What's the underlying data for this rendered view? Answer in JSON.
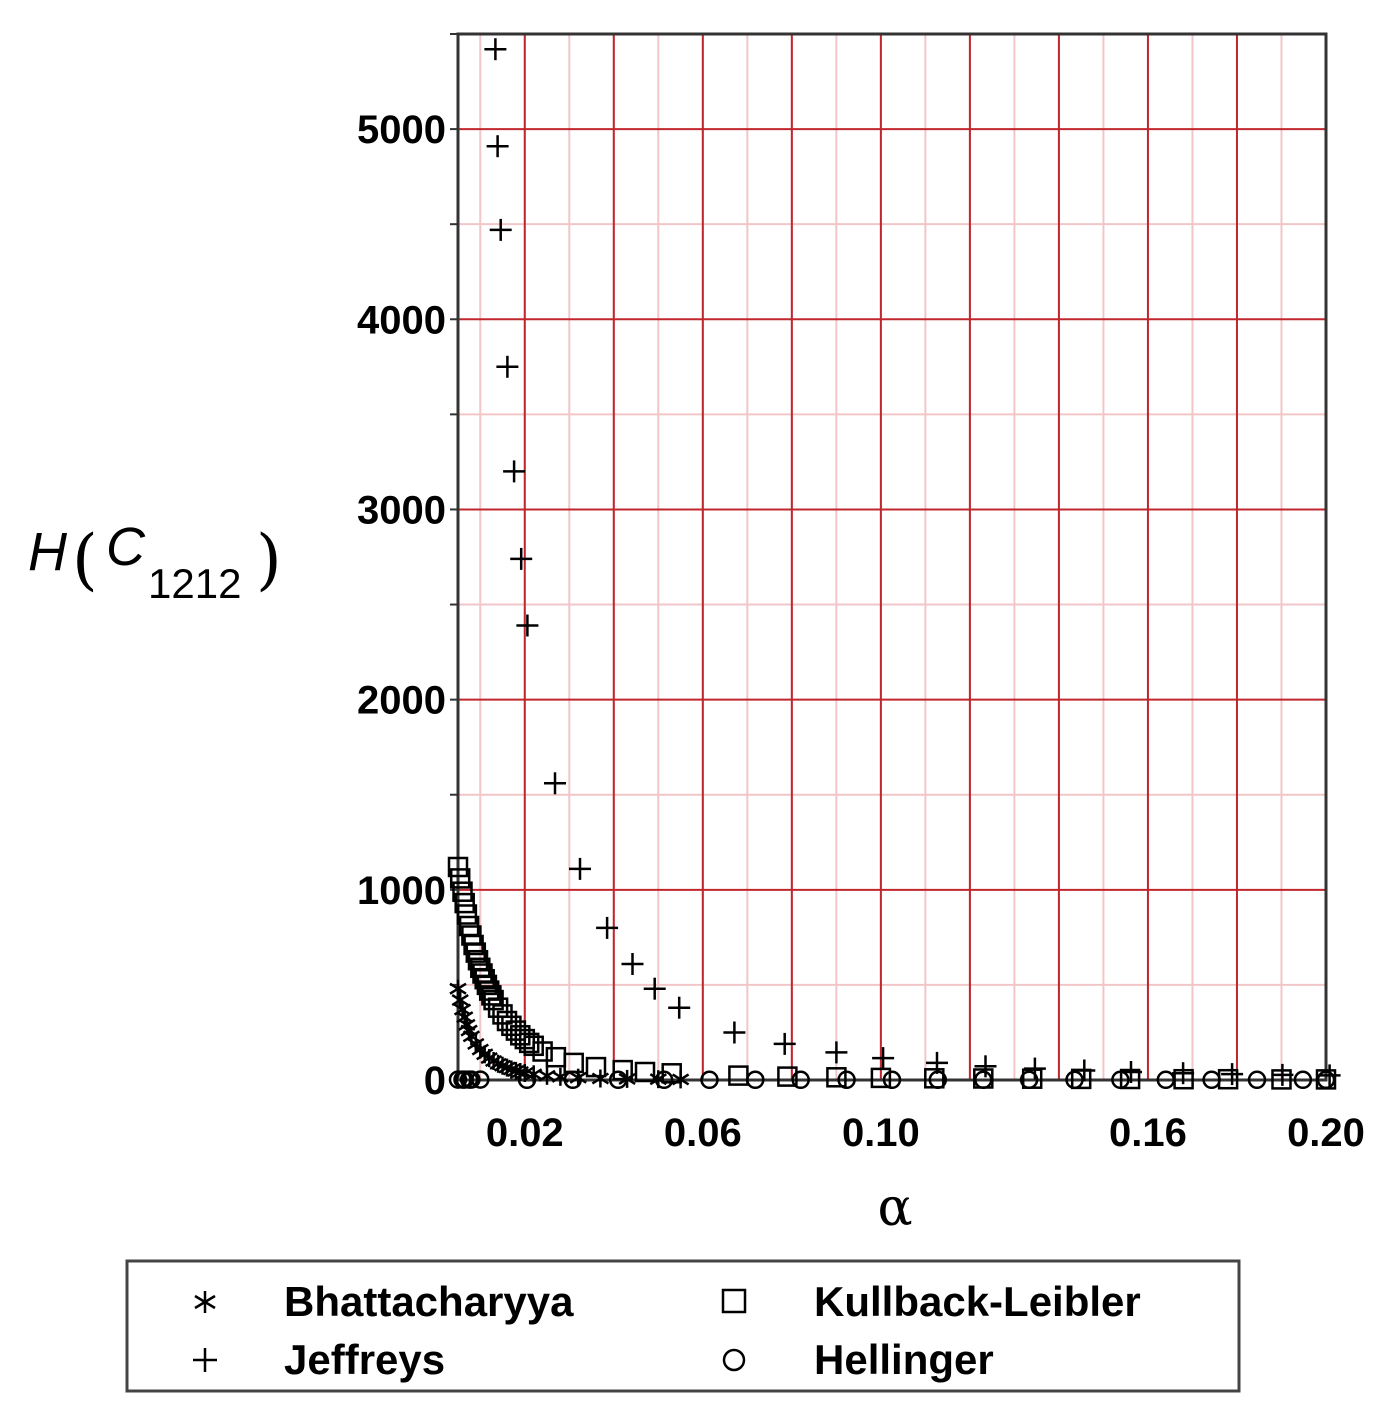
{
  "chart_data": {
    "type": "scatter",
    "title": "",
    "xlabel": "α",
    "ylabel": {
      "main": "H",
      "symbol": "C",
      "subscript": "1212"
    },
    "xlim": [
      0.005,
      0.2
    ],
    "ylim": [
      0,
      5500
    ],
    "x_ticks": [
      {
        "value": 0.02,
        "label": "0.02"
      },
      {
        "value": 0.06,
        "label": "0.06"
      },
      {
        "value": 0.1,
        "label": "0.10"
      },
      {
        "value": 0.16,
        "label": "0.16"
      },
      {
        "value": 0.2,
        "label": "0.20"
      }
    ],
    "y_ticks": [
      {
        "value": 0,
        "label": "0"
      },
      {
        "value": 1000,
        "label": "1000"
      },
      {
        "value": 2000,
        "label": "2000"
      },
      {
        "value": 3000,
        "label": "3000"
      },
      {
        "value": 4000,
        "label": "4000"
      },
      {
        "value": 5000,
        "label": "5000"
      }
    ],
    "grid": true,
    "grid_major_color": "#c0272d",
    "grid_minor_color": "#f2c6c8",
    "legend_position": "bottom",
    "series": [
      {
        "name": "Bhattacharyya",
        "marker": "star",
        "x": [
          0.005,
          0.0055,
          0.006,
          0.0065,
          0.007,
          0.0075,
          0.008,
          0.009,
          0.01,
          0.011,
          0.012,
          0.013,
          0.014,
          0.015,
          0.016,
          0.017,
          0.018,
          0.019,
          0.02,
          0.022,
          0.025,
          0.028,
          0.032,
          0.037,
          0.043,
          0.05,
          0.055
        ],
        "y": [
          480,
          420,
          370,
          330,
          290,
          260,
          230,
          190,
          160,
          135,
          115,
          100,
          85,
          75,
          65,
          55,
          48,
          42,
          37,
          30,
          22,
          17,
          12,
          8,
          6,
          4,
          3
        ]
      },
      {
        "name": "Kullback-Leibler",
        "marker": "square",
        "x": [
          0.005,
          0.0055,
          0.006,
          0.0065,
          0.007,
          0.0075,
          0.008,
          0.0085,
          0.009,
          0.0095,
          0.01,
          0.0105,
          0.011,
          0.0115,
          0.012,
          0.0125,
          0.013,
          0.014,
          0.015,
          0.016,
          0.017,
          0.018,
          0.019,
          0.02,
          0.021,
          0.022,
          0.024,
          0.027,
          0.031,
          0.036,
          0.042,
          0.047,
          0.053,
          0.068,
          0.079,
          0.09,
          0.1,
          0.112,
          0.123,
          0.134,
          0.145,
          0.156,
          0.168,
          0.178,
          0.19,
          0.2
        ],
        "y": [
          1120,
          1060,
          990,
          930,
          870,
          810,
          760,
          710,
          670,
          630,
          590,
          560,
          530,
          500,
          470,
          445,
          420,
          380,
          345,
          310,
          285,
          260,
          235,
          215,
          195,
          180,
          150,
          120,
          90,
          68,
          52,
          42,
          35,
          23,
          18,
          14,
          11,
          9,
          8,
          7,
          6,
          5,
          4,
          4,
          3,
          3
        ]
      },
      {
        "name": "Jeffreys",
        "marker": "plus",
        "x": [
          0.0134,
          0.0139,
          0.0146,
          0.0161,
          0.0176,
          0.0192,
          0.0206,
          0.0268,
          0.0324,
          0.0385,
          0.0442,
          0.0492,
          0.0547,
          0.0671,
          0.0784,
          0.09,
          0.1005,
          0.1126,
          0.1235,
          0.1346,
          0.1457,
          0.1562,
          0.1679,
          0.1789,
          0.1902,
          0.2008
        ],
        "y": [
          5420,
          4910,
          4470,
          3750,
          3200,
          2740,
          2390,
          1560,
          1110,
          800,
          610,
          480,
          380,
          250,
          190,
          145,
          115,
          90,
          72,
          60,
          50,
          42,
          36,
          31,
          27,
          24
        ]
      },
      {
        "name": "Hellinger",
        "marker": "circle",
        "x": [
          0.005,
          0.006,
          0.0065,
          0.0075,
          0.008,
          0.01,
          0.0205,
          0.0308,
          0.041,
          0.0513,
          0.0615,
          0.0718,
          0.082,
          0.0923,
          0.1025,
          0.1128,
          0.123,
          0.1333,
          0.1435,
          0.1538,
          0.164,
          0.1743,
          0.1845,
          0.1948,
          0.2
        ],
        "y": [
          2,
          2,
          2,
          2,
          2,
          2,
          1,
          1,
          1,
          1,
          1,
          1,
          1,
          1,
          1,
          1,
          1,
          1,
          1,
          1,
          1,
          1,
          1,
          1,
          1
        ]
      }
    ]
  }
}
